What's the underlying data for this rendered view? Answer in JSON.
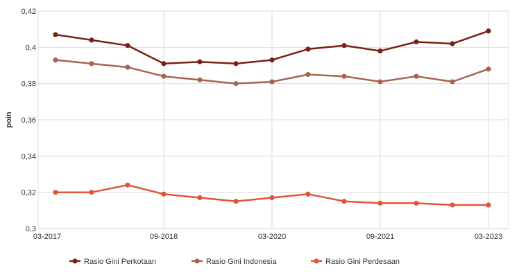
{
  "chart_data": {
    "type": "line",
    "x": [
      "03-2017",
      "09-2017",
      "03-2018",
      "09-2018",
      "03-2019",
      "09-2019",
      "03-2020",
      "09-2020",
      "03-2021",
      "09-2021",
      "03-2022",
      "09-2022",
      "03-2023"
    ],
    "x_tick_labels": [
      "03-2017",
      "09-2018",
      "03-2020",
      "09-2021",
      "03-2023"
    ],
    "ylabel": "poin",
    "ylim": [
      0.3,
      0.42
    ],
    "y_tick_labels": [
      "0,3",
      "0,32",
      "0,34",
      "0,36",
      "0,38",
      "0,4",
      "0,42"
    ],
    "grid": true,
    "legend_position": "bottom",
    "series": [
      {
        "name": "Rasio Gini Perkotaan",
        "color": "#7b2012",
        "values": [
          0.407,
          0.404,
          0.401,
          0.391,
          0.392,
          0.391,
          0.393,
          0.399,
          0.401,
          0.398,
          0.403,
          0.402,
          0.409
        ]
      },
      {
        "name": "Rasio Gini Indonesia",
        "color": "#a6644e",
        "values": [
          0.393,
          0.391,
          0.389,
          0.384,
          0.382,
          0.38,
          0.381,
          0.385,
          0.384,
          0.381,
          0.384,
          0.381,
          0.388
        ]
      },
      {
        "name": "Rasio Gini Perdesaan",
        "color": "#e2533a",
        "values": [
          0.32,
          0.32,
          0.324,
          0.319,
          0.317,
          0.315,
          0.317,
          0.319,
          0.315,
          0.314,
          0.314,
          0.313,
          0.313
        ]
      }
    ]
  }
}
